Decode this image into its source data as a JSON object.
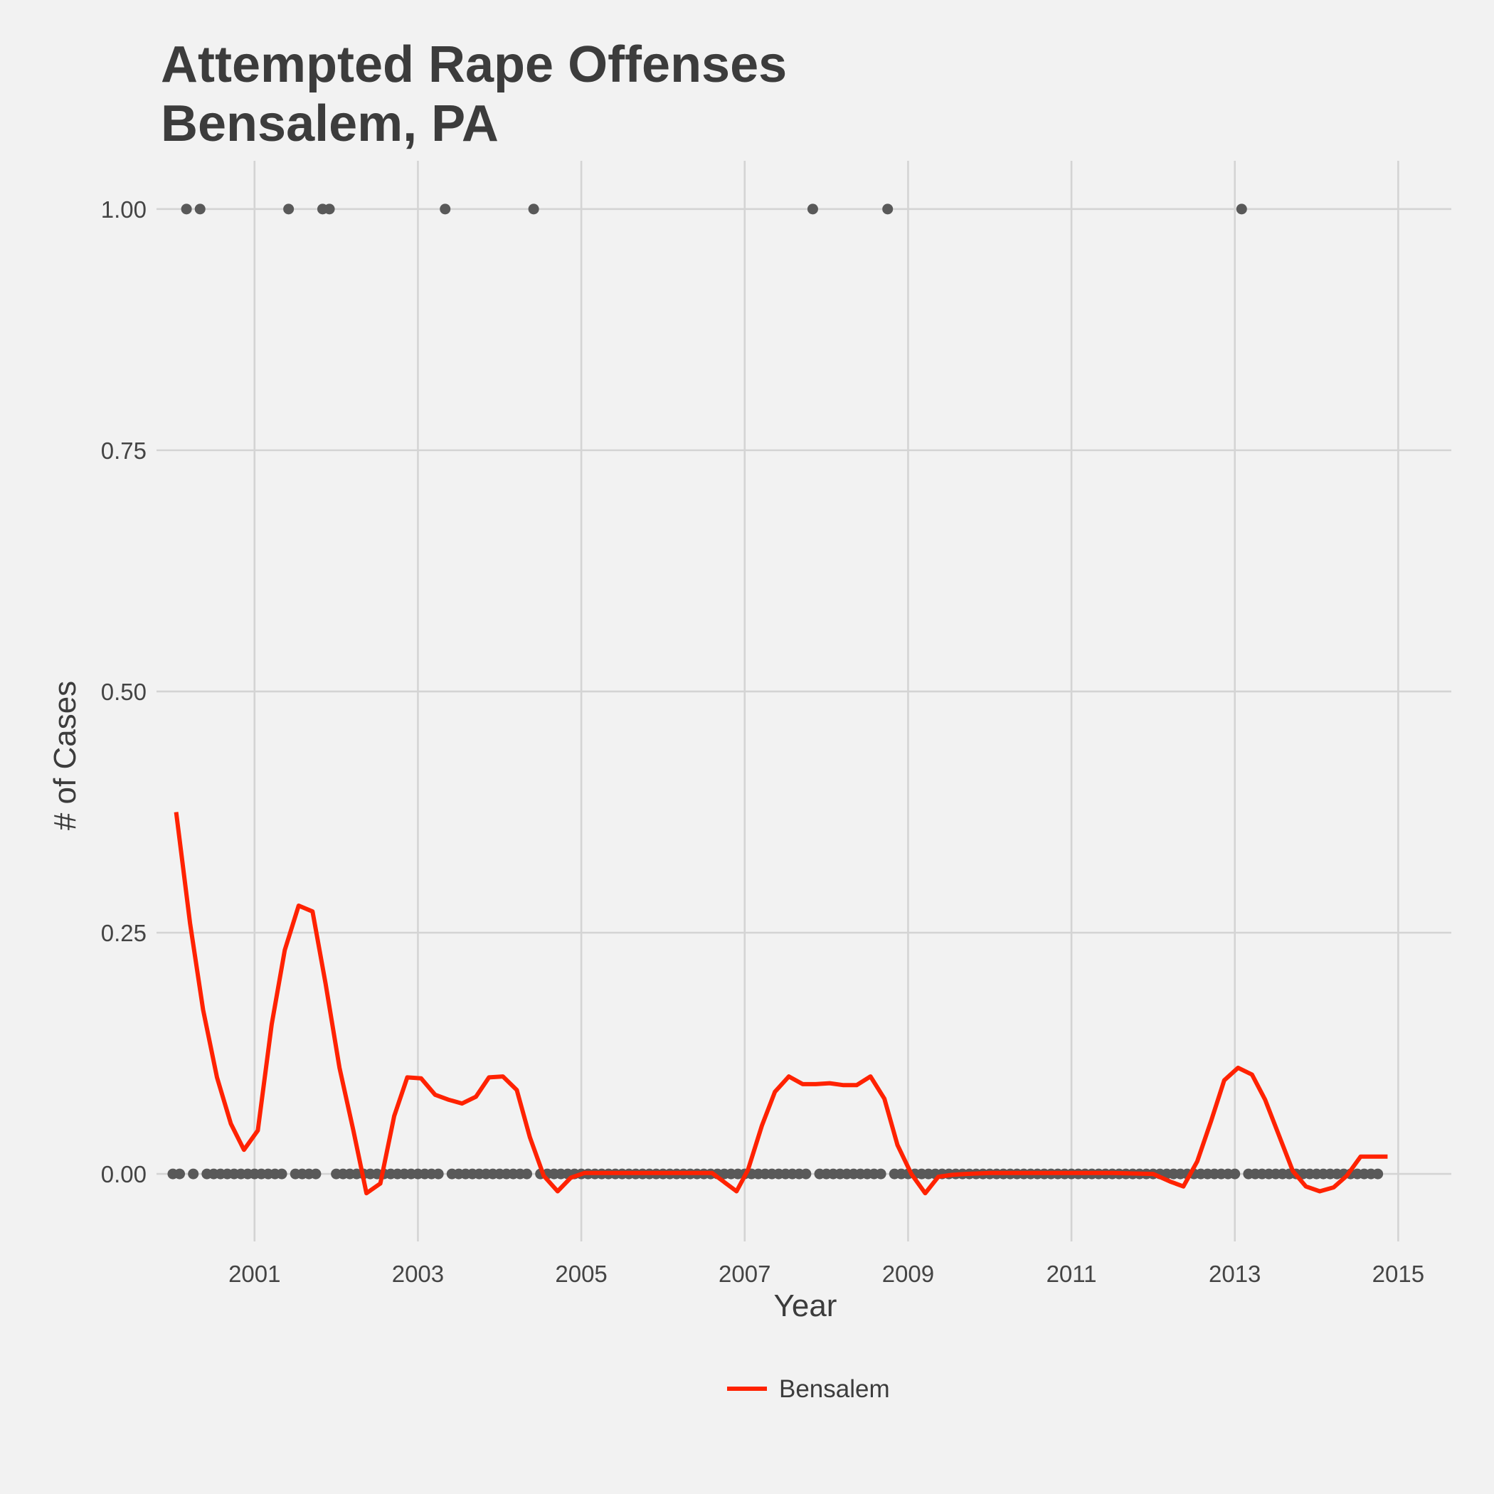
{
  "chart_data": {
    "type": "line",
    "title_lines": [
      "Attempted Rape Offenses",
      "Bensalem, PA"
    ],
    "xlabel": "Year",
    "ylabel": "# of Cases",
    "x_ticks": [
      2001,
      2003,
      2005,
      2007,
      2009,
      2011,
      2013,
      2015
    ],
    "y_ticks": [
      0,
      0.25,
      0.5,
      0.75,
      1.0
    ],
    "y_tick_labels": [
      "0.00",
      "0.25",
      "0.50",
      "0.75",
      "1.00"
    ],
    "xlim": [
      1999.8,
      2015.65
    ],
    "ylim": [
      -0.07,
      1.05
    ],
    "grid": true,
    "legend_position": "bottom",
    "colors": {
      "line": "#ff2200",
      "points": "#595959",
      "grid": "#d4d4d4",
      "background": "#f2f2f2"
    },
    "series": [
      {
        "name": "Bensalem",
        "x": [
          2000.04,
          2000.21,
          2000.37,
          2000.54,
          2000.71,
          2000.87,
          2001.04,
          2001.21,
          2001.37,
          2001.54,
          2001.71,
          2001.87,
          2002.04,
          2002.21,
          2002.37,
          2002.54,
          2002.71,
          2002.87,
          2003.04,
          2003.21,
          2003.37,
          2003.54,
          2003.71,
          2003.87,
          2004.04,
          2004.21,
          2004.37,
          2004.54,
          2004.71,
          2004.87,
          2005.04,
          2005.21,
          2005.37,
          2005.54,
          2005.71,
          2006.0,
          2006.3,
          2006.6,
          2006.9,
          2007.04,
          2007.21,
          2007.37,
          2007.54,
          2007.71,
          2007.87,
          2008.04,
          2008.21,
          2008.37,
          2008.54,
          2008.71,
          2008.87,
          2009.04,
          2009.21,
          2009.37,
          2009.54,
          2009.71,
          2010.0,
          2010.5,
          2011.0,
          2011.5,
          2012.0,
          2012.21,
          2012.37,
          2012.54,
          2012.71,
          2012.87,
          2013.04,
          2013.21,
          2013.37,
          2013.54,
          2013.71,
          2013.87,
          2014.04,
          2014.21,
          2014.37,
          2014.54,
          2014.71,
          2014.87
        ],
        "y": [
          0.375,
          0.26,
          0.17,
          0.1,
          0.052,
          0.025,
          0.045,
          0.155,
          0.232,
          0.278,
          0.272,
          0.197,
          0.11,
          0.045,
          -0.02,
          -0.01,
          0.06,
          0.1,
          0.099,
          0.082,
          0.077,
          0.073,
          0.08,
          0.1,
          0.101,
          0.087,
          0.038,
          -0.002,
          -0.018,
          -0.004,
          0.001,
          0.001,
          0.001,
          0.001,
          0.001,
          0.001,
          0.001,
          0.001,
          -0.018,
          0.004,
          0.05,
          0.085,
          0.101,
          0.093,
          0.093,
          0.094,
          0.092,
          0.092,
          0.101,
          0.078,
          0.03,
          0.0,
          -0.02,
          -0.003,
          -0.001,
          0.0,
          0.001,
          0.001,
          0.001,
          0.001,
          0.0,
          -0.008,
          -0.013,
          0.013,
          0.055,
          0.097,
          0.11,
          0.103,
          0.077,
          0.04,
          0.003,
          -0.013,
          -0.018,
          -0.014,
          -0.002,
          0.018,
          0.018,
          0.018
        ]
      }
    ],
    "points": {
      "start": 2000.0,
      "step": 0.0833333,
      "values": [
        0,
        0,
        1,
        0,
        1,
        0,
        0,
        0,
        0,
        0,
        0,
        0,
        0,
        0,
        0,
        0,
        0,
        1,
        0,
        0,
        0,
        0,
        1,
        1,
        0,
        0,
        0,
        0,
        0,
        0,
        0,
        0,
        0,
        0,
        0,
        0,
        0,
        0,
        0,
        0,
        1,
        0,
        0,
        0,
        0,
        0,
        0,
        0,
        0,
        0,
        0,
        0,
        0,
        1,
        0,
        0,
        0,
        0,
        0,
        0,
        0,
        0,
        0,
        0,
        0,
        0,
        0,
        0,
        0,
        0,
        0,
        0,
        0,
        0,
        0,
        0,
        0,
        0,
        0,
        0,
        0,
        0,
        0,
        0,
        0,
        0,
        0,
        0,
        0,
        0,
        0,
        0,
        0,
        0,
        1,
        0,
        0,
        0,
        0,
        0,
        0,
        0,
        0,
        0,
        0,
        1,
        0,
        0,
        0,
        0,
        0,
        0,
        0,
        0,
        0,
        0,
        0,
        0,
        0,
        0,
        0,
        0,
        0,
        0,
        0,
        0,
        0,
        0,
        0,
        0,
        0,
        0,
        0,
        0,
        0,
        0,
        0,
        0,
        0,
        0,
        0,
        0,
        0,
        0,
        0,
        0,
        0,
        0,
        0,
        0,
        0,
        0,
        0,
        0,
        0,
        0,
        0,
        1,
        0,
        0,
        0,
        0,
        0,
        0,
        0,
        0,
        0,
        0,
        0,
        0,
        0,
        0,
        0,
        0,
        0,
        0,
        0,
        0
      ]
    }
  }
}
